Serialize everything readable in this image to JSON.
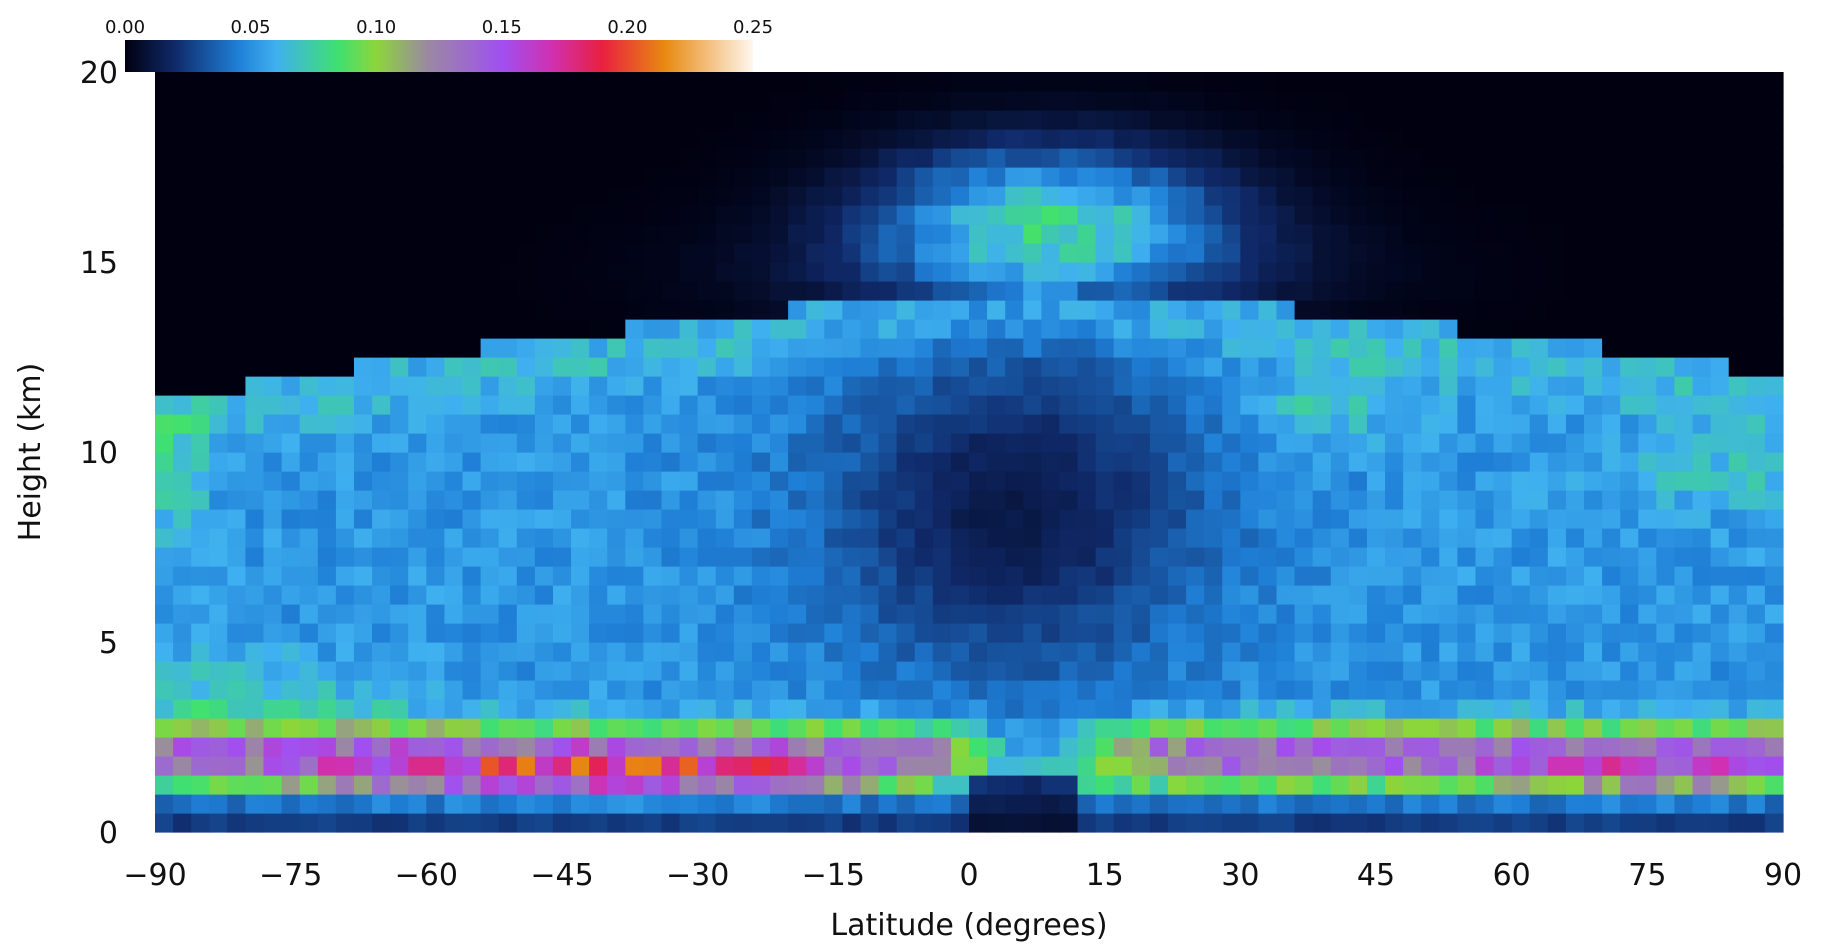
{
  "chart_data": {
    "type": "heatmap",
    "title": "",
    "xlabel": "Latitude (degrees)",
    "ylabel": "Height (km)",
    "xlim": [
      -90,
      90
    ],
    "ylim": [
      0,
      20
    ],
    "x_ticks": [
      -90,
      -75,
      -60,
      -45,
      -30,
      -15,
      0,
      15,
      30,
      45,
      60,
      75,
      90
    ],
    "x_tick_labels": [
      "−90",
      "−75",
      "−60",
      "−45",
      "−30",
      "−15",
      "0",
      "15",
      "30",
      "45",
      "60",
      "75",
      "90"
    ],
    "y_ticks": [
      0,
      5,
      10,
      15,
      20
    ],
    "y_tick_labels": [
      "0",
      "5",
      "10",
      "15",
      "20"
    ],
    "colorbar": {
      "min": 0.0,
      "max": 0.25,
      "ticks": [
        0.0,
        0.05,
        0.1,
        0.15,
        0.2,
        0.25
      ],
      "tick_labels": [
        "0.00",
        "0.05",
        "0.10",
        "0.15",
        "0.20",
        "0.25"
      ],
      "stops": [
        {
          "v": 0.0,
          "c": "#000010"
        },
        {
          "v": 0.02,
          "c": "#102a6a"
        },
        {
          "v": 0.045,
          "c": "#1f7fd6"
        },
        {
          "v": 0.06,
          "c": "#3fb0f0"
        },
        {
          "v": 0.085,
          "c": "#3fe070"
        },
        {
          "v": 0.1,
          "c": "#8cd63a"
        },
        {
          "v": 0.12,
          "c": "#9a8aa0"
        },
        {
          "v": 0.15,
          "c": "#a050f0"
        },
        {
          "v": 0.17,
          "c": "#d030b0"
        },
        {
          "v": 0.19,
          "c": "#e82040"
        },
        {
          "v": 0.215,
          "c": "#e88a10"
        },
        {
          "v": 0.25,
          "c": "#fff6ee"
        }
      ]
    },
    "grid": false,
    "grid_resolution": {
      "lat_step_deg": 2,
      "height_step_km": 0.5
    }
  }
}
